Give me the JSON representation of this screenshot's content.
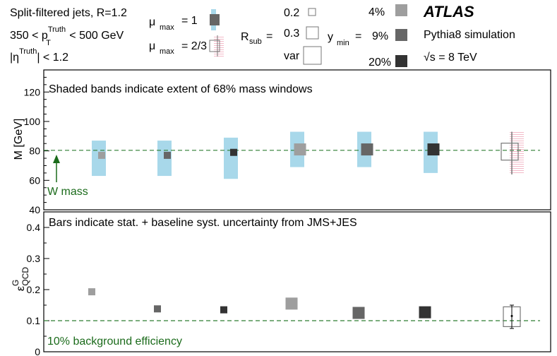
{
  "chart_data": [
    {
      "type": "scatter",
      "title": "Shaded bands indicate extent of 68% mass windows",
      "xlabel": "",
      "ylabel": "M [GeV]",
      "ylim": [
        40,
        135
      ],
      "yticks": [
        40,
        60,
        80,
        100,
        120
      ],
      "reference_line": {
        "value": 80.4,
        "label": "W mass"
      },
      "series": [
        {
          "name": "mu_max = 1, R_sub = 0.2, y_min = 4%",
          "value": 77,
          "band": [
            63,
            87
          ]
        },
        {
          "name": "mu_max = 1, R_sub = 0.2, y_min = 9%",
          "value": 77,
          "band": [
            63,
            87
          ]
        },
        {
          "name": "mu_max = 1, R_sub = 0.2, y_min = 20%",
          "value": 79,
          "band": [
            61,
            89
          ]
        },
        {
          "name": "mu_max = 1, R_sub = var, y_min = 4%",
          "value": 81,
          "band": [
            69,
            93
          ]
        },
        {
          "name": "mu_max = 1, R_sub = var, y_min = 9%",
          "value": 81,
          "band": [
            69,
            93
          ]
        },
        {
          "name": "mu_max = 1, R_sub = var, y_min = 20%",
          "value": 81,
          "band": [
            65,
            93
          ]
        },
        {
          "name": "mu_max = 2/3, R_sub = var, y_min = 4%",
          "value": 79.5,
          "band": [
            64,
            93
          ]
        }
      ]
    },
    {
      "type": "scatter",
      "title": "Bars indicate stat. + baseline syst. uncertainty from JMS+JES",
      "xlabel": "",
      "ylabel": "ε^G_QCD",
      "ylim": [
        0,
        0.45
      ],
      "yticks": [
        0,
        0.1,
        0.2,
        0.3,
        0.4
      ],
      "reference_line": {
        "value": 0.1,
        "label": "10% background efficiency"
      },
      "series": [
        {
          "name": "mu_max = 1, R_sub = 0.2, y_min = 4%",
          "value": 0.193
        },
        {
          "name": "mu_max = 1, R_sub = 0.2, y_min = 9%",
          "value": 0.138
        },
        {
          "name": "mu_max = 1, R_sub = 0.2, y_min = 20%",
          "value": 0.135
        },
        {
          "name": "mu_max = 1, R_sub = var, y_min = 4%",
          "value": 0.155
        },
        {
          "name": "mu_max = 1, R_sub = var, y_min = 9%",
          "value": 0.125
        },
        {
          "name": "mu_max = 1, R_sub = var, y_min = 20%",
          "value": 0.127
        },
        {
          "name": "mu_max = 2/3, R_sub = var, y_min = 4%",
          "value": 0.115,
          "err": [
            0.075,
            0.15
          ]
        }
      ]
    }
  ],
  "legend": {
    "jet_line1": "Split-filtered jets, R=1.2",
    "jet_line2_pre": "350 < p",
    "jet_line2_sup": "Truth",
    "jet_line2_sub": "T",
    "jet_line2_post": " < 500 GeV",
    "jet_line3_pre": "|η",
    "jet_line3_sup": "Truth",
    "jet_line3_post": "| < 1.2",
    "mu_label": "μ",
    "mu_sub": "max",
    "mu1_value": "= 1",
    "mu2_value": "= 2/3",
    "rsub_label": "R",
    "rsub_sub": "sub",
    "rsub_eq": "=",
    "rsub_opt1": "0.2",
    "rsub_opt2": "0.3",
    "rsub_opt3": "var",
    "ymin_label": "y",
    "ymin_sub": "min",
    "ymin_eq": "=",
    "ymin_opt1": "4%",
    "ymin_opt2": "9%",
    "ymin_opt3": "20%",
    "atlas": "ATLAS",
    "simulation": "Pythia8 simulation",
    "energy": "√s = 8 TeV"
  },
  "colors": {
    "band": "#a8d8ea",
    "ref_line": "#2e7d32",
    "ref_text": "#1b6b1b",
    "marker_light": "#9e9e9e",
    "marker_mid": "#666666",
    "marker_dark": "#333333",
    "hatch": "#f4b0c0",
    "axis": "#000000"
  }
}
